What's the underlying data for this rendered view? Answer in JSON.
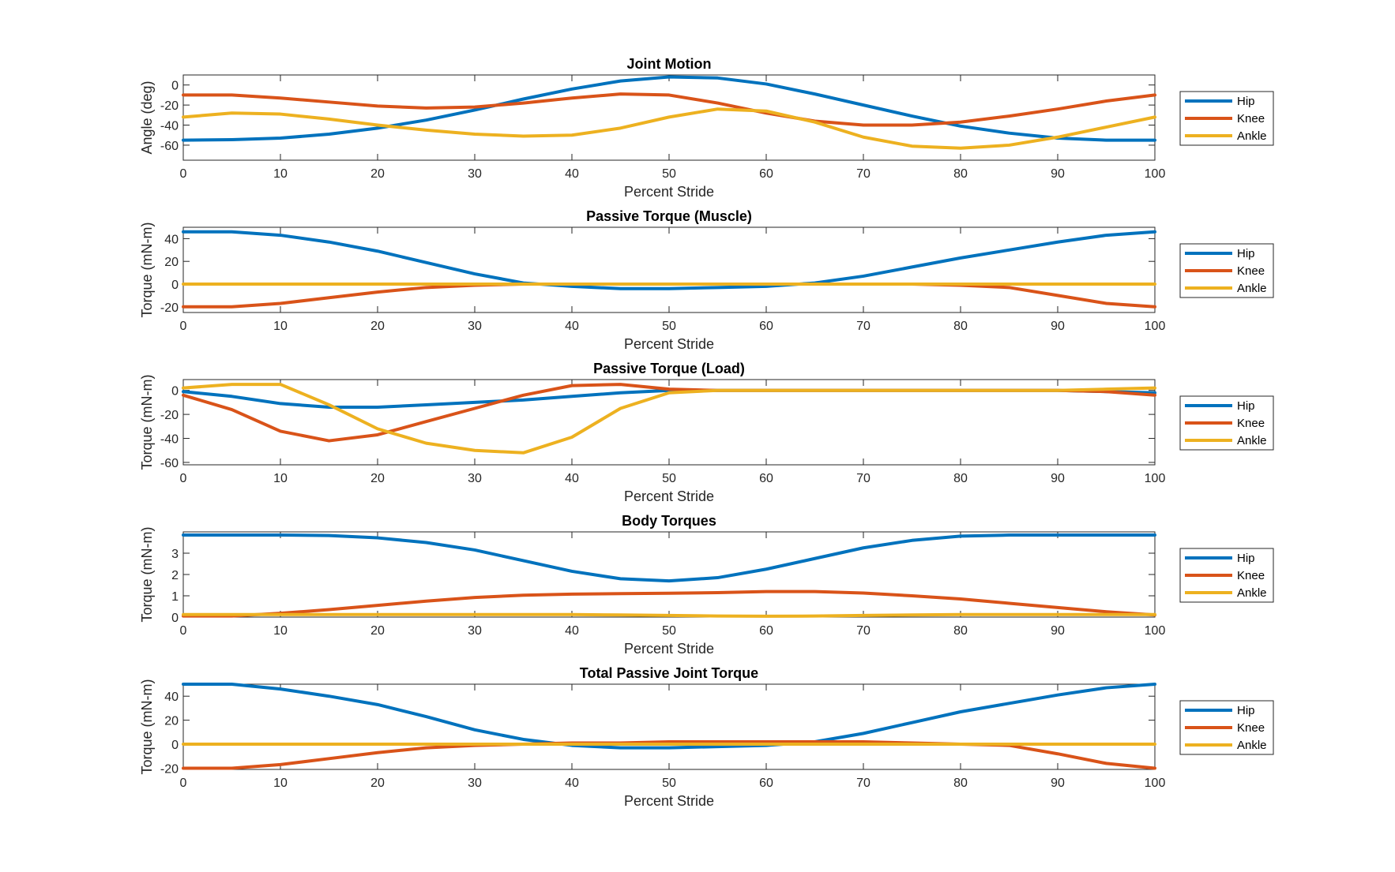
{
  "colors": {
    "Hip": "#0072BD",
    "Knee": "#D95319",
    "Ankle": "#EDB120"
  },
  "chart_data": [
    {
      "type": "line",
      "title": "Joint Motion",
      "xlabel": "Percent Stride",
      "ylabel": "Angle (deg)",
      "xlim": [
        0,
        100
      ],
      "ylim": [
        -75,
        10
      ],
      "xticks": [
        0,
        10,
        20,
        30,
        40,
        50,
        60,
        70,
        80,
        90,
        100
      ],
      "yticks": [
        -60,
        -40,
        -20,
        0
      ],
      "legend": {
        "position": "right-outside",
        "entries": [
          "Hip",
          "Knee",
          "Ankle"
        ]
      },
      "x": [
        0,
        5,
        10,
        15,
        20,
        25,
        30,
        35,
        40,
        45,
        50,
        55,
        60,
        65,
        70,
        75,
        80,
        85,
        90,
        95,
        100
      ],
      "series": [
        {
          "name": "Hip",
          "values": [
            -55,
            -54.5,
            -53,
            -49,
            -43,
            -35,
            -25,
            -14,
            -4,
            4,
            8,
            7,
            1,
            -9,
            -20,
            -31,
            -41,
            -48,
            -53,
            -55,
            -55
          ]
        },
        {
          "name": "Knee",
          "values": [
            -10,
            -10,
            -13,
            -17,
            -21,
            -23,
            -22,
            -18,
            -13,
            -9,
            -10,
            -18,
            -28,
            -36,
            -40,
            -40,
            -37,
            -31,
            -24,
            -16,
            -10
          ]
        },
        {
          "name": "Ankle",
          "values": [
            -32,
            -28,
            -29,
            -34,
            -40,
            -45,
            -49,
            -51,
            -50,
            -43,
            -32,
            -24,
            -26,
            -37,
            -52,
            -61,
            -63,
            -60,
            -52,
            -42,
            -32
          ]
        }
      ]
    },
    {
      "type": "line",
      "title": "Passive Torque (Muscle)",
      "xlabel": "Percent Stride",
      "ylabel": "Torque (mN-m)",
      "xlim": [
        0,
        100
      ],
      "ylim": [
        -25,
        50
      ],
      "xticks": [
        0,
        10,
        20,
        30,
        40,
        50,
        60,
        70,
        80,
        90,
        100
      ],
      "yticks": [
        -20,
        0,
        20,
        40
      ],
      "legend": {
        "position": "right-outside",
        "entries": [
          "Hip",
          "Knee",
          "Ankle"
        ]
      },
      "x": [
        0,
        5,
        10,
        15,
        20,
        25,
        30,
        35,
        40,
        45,
        50,
        55,
        60,
        65,
        70,
        75,
        80,
        85,
        90,
        95,
        100
      ],
      "series": [
        {
          "name": "Hip",
          "values": [
            46,
            46,
            43,
            37,
            29,
            19,
            9,
            1,
            -2,
            -4,
            -4,
            -3,
            -2,
            1,
            7,
            15,
            23,
            30,
            37,
            43,
            46
          ]
        },
        {
          "name": "Knee",
          "values": [
            -20,
            -20,
            -17,
            -12,
            -7,
            -3,
            -1,
            0,
            0,
            0,
            0,
            0,
            0,
            0,
            0,
            0,
            -1,
            -3,
            -10,
            -17,
            -20
          ]
        },
        {
          "name": "Ankle",
          "values": [
            0,
            0,
            0,
            0,
            0,
            0,
            0,
            0,
            0,
            0,
            0,
            0,
            0,
            0,
            0,
            0,
            0,
            0,
            0,
            0,
            0
          ]
        }
      ]
    },
    {
      "type": "line",
      "title": "Passive Torque (Load)",
      "xlabel": "Percent Stride",
      "ylabel": "Torque (mN-m)",
      "xlim": [
        0,
        100
      ],
      "ylim": [
        -62,
        9
      ],
      "xticks": [
        0,
        10,
        20,
        30,
        40,
        50,
        60,
        70,
        80,
        90,
        100
      ],
      "yticks": [
        -60,
        -40,
        -20,
        0
      ],
      "legend": {
        "position": "right-outside",
        "entries": [
          "Hip",
          "Knee",
          "Ankle"
        ]
      },
      "x": [
        0,
        5,
        10,
        15,
        20,
        25,
        30,
        35,
        40,
        45,
        50,
        55,
        60,
        65,
        70,
        75,
        80,
        85,
        90,
        95,
        100
      ],
      "series": [
        {
          "name": "Hip",
          "values": [
            -1,
            -5,
            -11,
            -14,
            -14,
            -12,
            -10,
            -8,
            -5,
            -2,
            0,
            0,
            0,
            0,
            0,
            0,
            0,
            0,
            0,
            -1,
            -2
          ]
        },
        {
          "name": "Knee",
          "values": [
            -4,
            -16,
            -34,
            -42,
            -37,
            -26,
            -15,
            -4,
            4,
            5,
            1,
            0,
            0,
            0,
            0,
            0,
            0,
            0,
            0,
            -1,
            -4
          ]
        },
        {
          "name": "Ankle",
          "values": [
            2,
            5,
            5,
            -12,
            -32,
            -44,
            -50,
            -52,
            -39,
            -15,
            -2,
            0,
            0,
            0,
            0,
            0,
            0,
            0,
            0,
            1,
            2
          ]
        }
      ]
    },
    {
      "type": "line",
      "title": "Body Torques",
      "xlabel": "Percent Stride",
      "ylabel": "Torque (mN-m)",
      "xlim": [
        0,
        100
      ],
      "ylim": [
        0,
        4
      ],
      "xticks": [
        0,
        10,
        20,
        30,
        40,
        50,
        60,
        70,
        80,
        90,
        100
      ],
      "yticks": [
        0,
        1,
        2,
        3
      ],
      "legend": {
        "position": "right-outside",
        "entries": [
          "Hip",
          "Knee",
          "Ankle"
        ]
      },
      "x": [
        0,
        5,
        10,
        15,
        20,
        25,
        30,
        35,
        40,
        45,
        50,
        55,
        60,
        65,
        70,
        75,
        80,
        85,
        90,
        95,
        100
      ],
      "series": [
        {
          "name": "Hip",
          "values": [
            3.85,
            3.85,
            3.85,
            3.83,
            3.72,
            3.5,
            3.15,
            2.65,
            2.15,
            1.8,
            1.7,
            1.85,
            2.25,
            2.75,
            3.25,
            3.6,
            3.8,
            3.85,
            3.85,
            3.85,
            3.85
          ]
        },
        {
          "name": "Knee",
          "values": [
            0.05,
            0.05,
            0.18,
            0.35,
            0.55,
            0.75,
            0.92,
            1.03,
            1.08,
            1.1,
            1.12,
            1.15,
            1.2,
            1.2,
            1.13,
            1.0,
            0.85,
            0.65,
            0.45,
            0.25,
            0.1
          ]
        },
        {
          "name": "Ankle",
          "values": [
            0.12,
            0.12,
            0.12,
            0.12,
            0.12,
            0.12,
            0.12,
            0.12,
            0.12,
            0.1,
            0.08,
            0.05,
            0.04,
            0.05,
            0.08,
            0.1,
            0.12,
            0.12,
            0.12,
            0.12,
            0.12
          ]
        }
      ]
    },
    {
      "type": "line",
      "title": "Total Passive Joint Torque",
      "xlabel": "Percent Stride",
      "ylabel": "Torque (mN-m)",
      "xlim": [
        0,
        100
      ],
      "ylim": [
        -21,
        50
      ],
      "xticks": [
        0,
        10,
        20,
        30,
        40,
        50,
        60,
        70,
        80,
        90,
        100
      ],
      "yticks": [
        -20,
        0,
        20,
        40
      ],
      "legend": {
        "position": "right-outside",
        "entries": [
          "Hip",
          "Knee",
          "Ankle"
        ]
      },
      "x": [
        0,
        5,
        10,
        15,
        20,
        25,
        30,
        35,
        40,
        45,
        50,
        55,
        60,
        65,
        70,
        75,
        80,
        85,
        90,
        95,
        100
      ],
      "series": [
        {
          "name": "Hip",
          "values": [
            50,
            50,
            46,
            40,
            33,
            23,
            12,
            4,
            -1,
            -3,
            -3,
            -2,
            -1,
            2,
            9,
            18,
            27,
            34,
            41,
            47,
            50
          ]
        },
        {
          "name": "Knee",
          "values": [
            -20,
            -20,
            -17,
            -12,
            -7,
            -3,
            -1,
            0,
            1,
            1,
            2,
            2,
            2,
            2,
            2,
            1,
            0,
            -1,
            -8,
            -16,
            -20
          ]
        },
        {
          "name": "Ankle",
          "values": [
            0,
            0,
            0,
            0,
            0,
            0,
            0,
            0,
            0,
            0,
            0,
            0,
            0,
            0,
            0,
            0,
            0,
            0,
            0,
            0,
            0
          ]
        }
      ]
    }
  ]
}
